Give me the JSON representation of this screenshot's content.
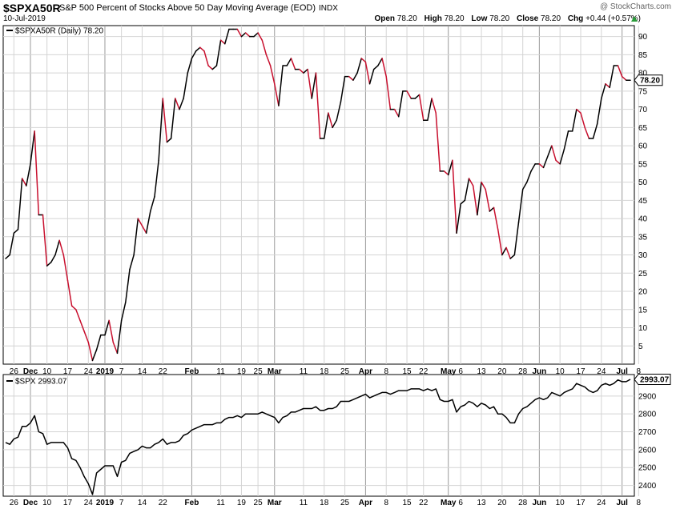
{
  "header": {
    "symbol": "$SPXA50R",
    "description": "S&P 500 Percent of Stocks Above 50 Day Moving Average (EOD)",
    "exchange": "INDX",
    "date": "10-Jul-2019",
    "brand": "@ StockCharts.com",
    "open_label": "Open",
    "open_value": "78.20",
    "high_label": "High",
    "high_value": "78.20",
    "low_label": "Low",
    "low_value": "78.20",
    "close_label": "Close",
    "close_value": "78.20",
    "chg_label": "Chg",
    "chg_value": "+0.44 (+0.57%)"
  },
  "colors": {
    "up": "#000000",
    "down": "#c8102e",
    "grid": "#d4d4d4",
    "spx": "#000000"
  },
  "chart_data": [
    {
      "type": "line",
      "legend": "$SPXA50R (Daily) 78.20",
      "last_value_label": "78.20",
      "ylim": [
        0,
        93
      ],
      "yticks": [
        5,
        10,
        15,
        20,
        25,
        30,
        35,
        40,
        45,
        50,
        55,
        60,
        65,
        70,
        75,
        80,
        85,
        90
      ],
      "values": [
        29,
        30,
        36,
        37,
        51,
        49,
        55,
        64,
        41,
        41,
        27,
        28,
        30,
        34,
        30,
        23,
        16,
        15,
        12,
        9,
        6,
        1,
        4,
        8,
        8,
        12,
        6,
        3,
        12,
        17,
        26,
        30,
        40,
        38,
        36,
        42,
        46,
        56,
        73,
        61,
        62,
        73,
        70,
        73,
        80,
        84,
        86,
        87,
        86,
        82,
        81,
        82,
        89,
        88,
        92,
        92,
        92,
        90,
        91,
        90,
        90,
        91,
        89,
        85,
        82,
        77,
        71,
        82,
        82,
        84,
        81,
        81,
        80,
        81,
        73,
        80,
        62,
        62,
        69,
        65,
        67,
        72,
        79,
        79,
        78,
        80,
        84,
        83,
        77,
        81,
        82,
        84,
        79,
        70,
        70,
        68,
        75,
        75,
        73,
        73,
        74,
        67,
        67,
        73,
        69,
        53,
        53,
        52,
        56,
        36,
        44,
        45,
        51,
        49,
        41,
        50,
        48,
        42,
        43,
        37,
        30,
        32,
        29,
        30,
        39,
        48,
        50,
        53,
        55,
        55,
        54,
        57,
        60,
        56,
        55,
        59,
        64,
        64,
        70,
        69,
        65,
        62,
        62,
        66,
        73,
        77,
        76,
        82,
        82,
        79,
        78,
        78
      ],
      "x_ticks": [
        {
          "label": "26",
          "index": 2,
          "major": false
        },
        {
          "label": "Dec",
          "index": 6,
          "major": true
        },
        {
          "label": "10",
          "index": 10,
          "major": false
        },
        {
          "label": "17",
          "index": 15,
          "major": false
        },
        {
          "label": "24",
          "index": 20,
          "major": false
        },
        {
          "label": "2019",
          "index": 24,
          "major": true
        },
        {
          "label": "7",
          "index": 28,
          "major": false
        },
        {
          "label": "14",
          "index": 33,
          "major": false
        },
        {
          "label": "22",
          "index": 38,
          "major": false
        },
        {
          "label": "Feb",
          "index": 45,
          "major": true
        },
        {
          "label": "11",
          "index": 52,
          "major": false
        },
        {
          "label": "19",
          "index": 57,
          "major": false
        },
        {
          "label": "25",
          "index": 61,
          "major": false
        },
        {
          "label": "Mar",
          "index": 65,
          "major": true
        },
        {
          "label": "11",
          "index": 72,
          "major": false
        },
        {
          "label": "18",
          "index": 77,
          "major": false
        },
        {
          "label": "25",
          "index": 82,
          "major": false
        },
        {
          "label": "Apr",
          "index": 87,
          "major": true
        },
        {
          "label": "8",
          "index": 92,
          "major": false
        },
        {
          "label": "15",
          "index": 97,
          "major": false
        },
        {
          "label": "22",
          "index": 101,
          "major": false
        },
        {
          "label": "May",
          "index": 107,
          "major": true
        },
        {
          "label": "6",
          "index": 110,
          "major": false
        },
        {
          "label": "13",
          "index": 115,
          "major": false
        },
        {
          "label": "20",
          "index": 120,
          "major": false
        },
        {
          "label": "28",
          "index": 125,
          "major": false
        },
        {
          "label": "Jun",
          "index": 129,
          "major": true
        },
        {
          "label": "10",
          "index": 134,
          "major": false
        },
        {
          "label": "17",
          "index": 139,
          "major": false
        },
        {
          "label": "24",
          "index": 144,
          "major": false
        },
        {
          "label": "Jul",
          "index": 149,
          "major": true
        },
        {
          "label": "8",
          "index": 153,
          "major": false
        }
      ]
    },
    {
      "type": "line",
      "legend": "$SPX 2993.07",
      "last_value_label": "2993.07",
      "ylim": [
        2340,
        3020
      ],
      "yticks": [
        2400,
        2500,
        2600,
        2700,
        2800,
        2900
      ],
      "values": [
        2640,
        2630,
        2660,
        2670,
        2730,
        2730,
        2750,
        2790,
        2700,
        2690,
        2630,
        2640,
        2640,
        2640,
        2640,
        2610,
        2550,
        2540,
        2500,
        2450,
        2410,
        2350,
        2470,
        2490,
        2510,
        2510,
        2510,
        2450,
        2530,
        2540,
        2580,
        2590,
        2600,
        2620,
        2610,
        2610,
        2630,
        2640,
        2660,
        2630,
        2640,
        2640,
        2650,
        2680,
        2690,
        2710,
        2720,
        2730,
        2740,
        2740,
        2740,
        2750,
        2750,
        2770,
        2780,
        2780,
        2790,
        2780,
        2800,
        2800,
        2800,
        2800,
        2810,
        2800,
        2790,
        2780,
        2750,
        2780,
        2790,
        2810,
        2810,
        2820,
        2830,
        2830,
        2830,
        2840,
        2820,
        2820,
        2830,
        2830,
        2840,
        2870,
        2870,
        2870,
        2880,
        2890,
        2900,
        2910,
        2890,
        2900,
        2910,
        2920,
        2920,
        2910,
        2920,
        2930,
        2930,
        2930,
        2940,
        2940,
        2940,
        2930,
        2940,
        2930,
        2940,
        2880,
        2870,
        2870,
        2880,
        2810,
        2840,
        2850,
        2870,
        2860,
        2840,
        2860,
        2850,
        2830,
        2840,
        2800,
        2800,
        2780,
        2750,
        2750,
        2800,
        2830,
        2840,
        2860,
        2880,
        2890,
        2880,
        2890,
        2920,
        2910,
        2900,
        2920,
        2930,
        2940,
        2970,
        2960,
        2950,
        2930,
        2920,
        2930,
        2960,
        2970,
        2960,
        2970,
        2990,
        2980,
        2980,
        2993
      ]
    }
  ]
}
